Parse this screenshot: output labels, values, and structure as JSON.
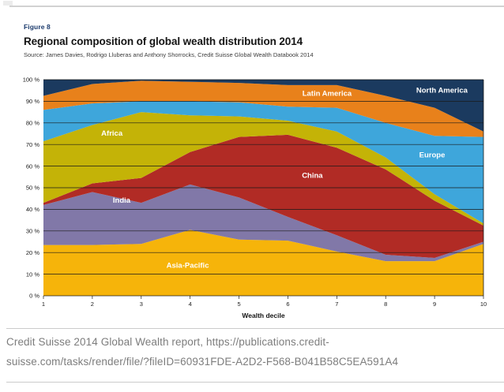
{
  "header": {
    "figure_label": "Figure 8",
    "title": "Regional composition of global wealth distribution 2014",
    "source": "Source: James Davies, Rodrigo Lluberas and Anthony Shorrocks, Credit Suisse Global Wealth Databook 2014"
  },
  "footer": {
    "caption_line1": "Credit Suisse 2014 Global Wealth report, https://publications.credit-",
    "caption_line2": "suisse.com/tasks/render/file/?fileID=60931FDE-A2D2-F568-B041B58C5EA591A4"
  },
  "chart_data": {
    "type": "area",
    "stacked": true,
    "title": "Regional composition of global wealth distribution 2014",
    "xlabel": "Wealth decile",
    "x": [
      1,
      2,
      3,
      4,
      5,
      6,
      7,
      8,
      9,
      10
    ],
    "ylim": [
      0,
      100
    ],
    "yticks": [
      0,
      10,
      20,
      30,
      40,
      50,
      60,
      70,
      80,
      90,
      100
    ],
    "ytick_labels": [
      "0 %",
      "10 %",
      "20 %",
      "30 %",
      "40 %",
      "50 %",
      "60 %",
      "70 %",
      "80 %",
      "90 %",
      "100 %"
    ],
    "grid": "horizontal-black-lines-over-areas",
    "legend": "white-labels-inside-areas",
    "axis_color": "#1a1a1a",
    "series": [
      {
        "name": "Asia-Pacific",
        "color": "#F6B40A",
        "values": [
          23.5,
          23.5,
          24,
          30.5,
          26,
          25.5,
          20.5,
          16,
          16,
          24
        ],
        "label_at": {
          "x": 3.95,
          "y": 13
        }
      },
      {
        "name": "India",
        "color": "#8178A8",
        "values": [
          18.5,
          24.5,
          19,
          21,
          19.5,
          11,
          7.5,
          3,
          1.5,
          1
        ],
        "label_at": {
          "x": 2.6,
          "y": 43
        }
      },
      {
        "name": "China",
        "color": "#B12B25",
        "values": [
          1,
          4,
          11.5,
          15,
          28,
          38,
          40.5,
          39.5,
          26.5,
          7.5
        ],
        "label_at": {
          "x": 6.5,
          "y": 54.5
        }
      },
      {
        "name": "Africa",
        "color": "#C4B307",
        "values": [
          28.5,
          27,
          30.5,
          17,
          9.5,
          6.5,
          7.5,
          5.5,
          3,
          1
        ],
        "label_at": {
          "x": 2.4,
          "y": 74
        }
      },
      {
        "name": "Europe",
        "color": "#3EA6DB",
        "values": [
          14.5,
          10,
          5,
          6.5,
          6.5,
          6.5,
          11,
          16,
          27,
          40
        ],
        "label_at": {
          "x": 8.95,
          "y": 64
        }
      },
      {
        "name": "Latin America",
        "color": "#E8811B",
        "values": [
          6.5,
          9,
          9.5,
          9,
          9,
          10,
          10.5,
          12.5,
          13,
          2.5
        ],
        "label_at": {
          "x": 6.8,
          "y": 92.5
        }
      },
      {
        "name": "North America",
        "color": "#1B3A5F",
        "values": [
          7.5,
          2,
          0.5,
          1,
          1.5,
          2.5,
          2.5,
          7.5,
          13,
          24
        ],
        "label_at": {
          "x": 9.15,
          "y": 94
        }
      }
    ]
  }
}
